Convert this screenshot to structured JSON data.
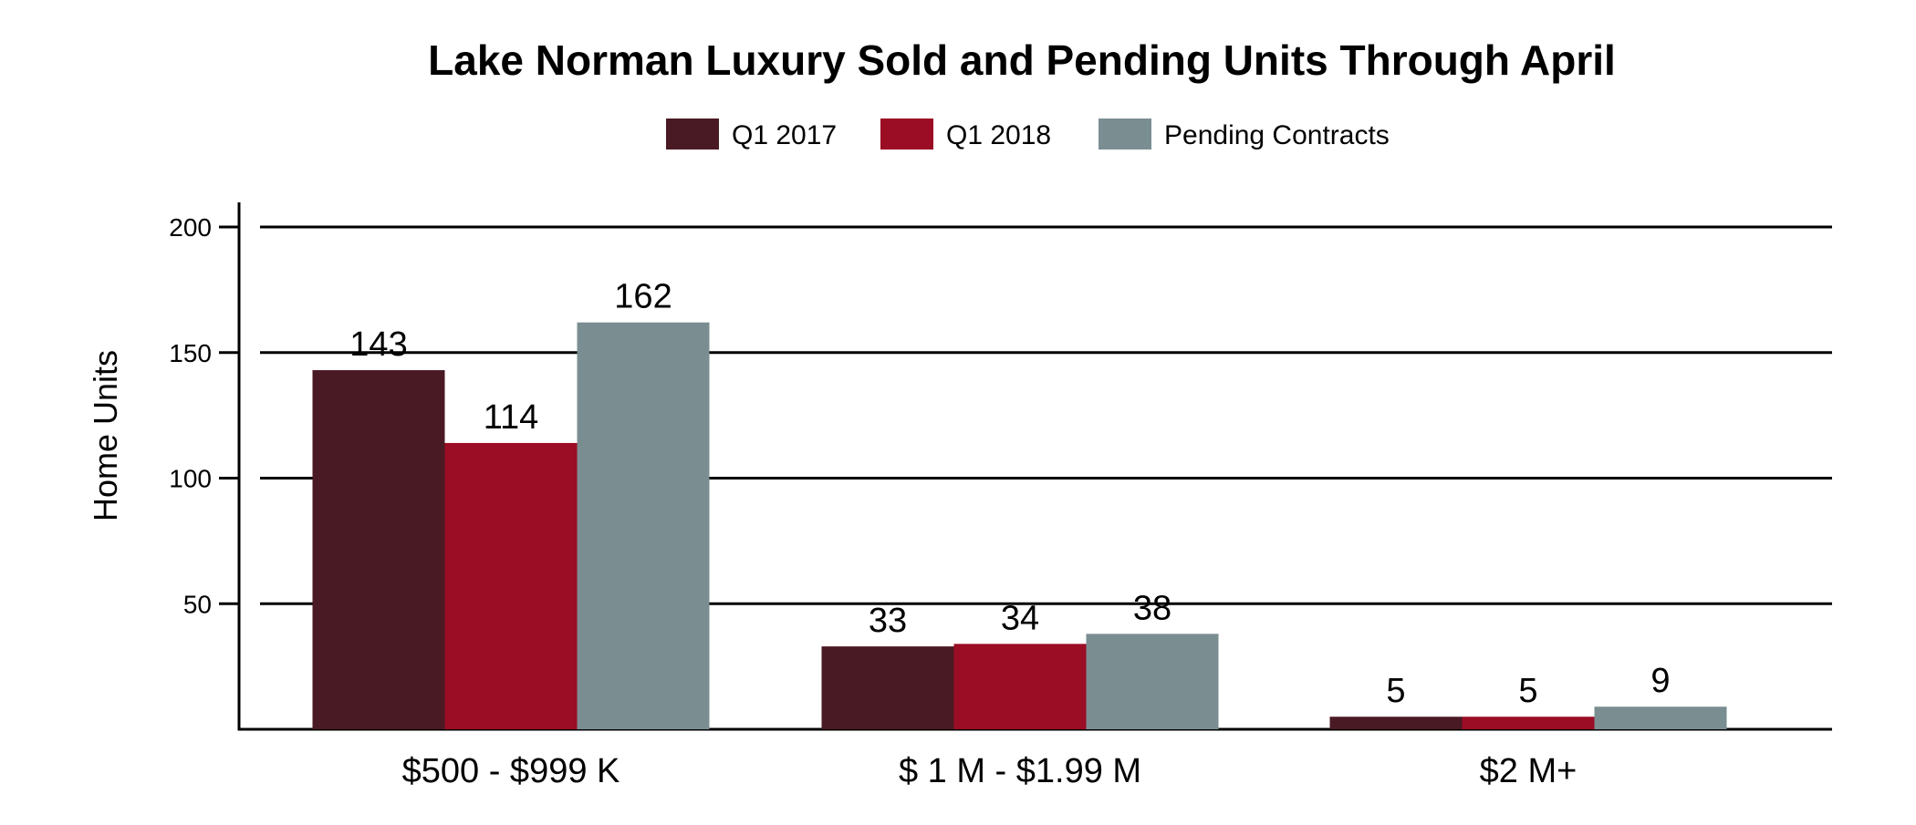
{
  "chart_data": {
    "type": "bar",
    "title": "Lake Norman Luxury Sold and Pending Units Through April",
    "xlabel": "",
    "ylabel": "Home Units",
    "ylim": [
      0,
      200
    ],
    "yticks": [
      50,
      100,
      150,
      200
    ],
    "grid": true,
    "legend_position": "top",
    "categories": [
      "$500 - $999 K",
      "$ 1 M - $1.99 M",
      "$2 M+"
    ],
    "series": [
      {
        "name": "Q1 2017",
        "color": "#4a1a24",
        "values": [
          143,
          33,
          5
        ]
      },
      {
        "name": "Q1 2018",
        "color": "#9b0c25",
        "values": [
          114,
          34,
          5
        ]
      },
      {
        "name": "Pending Contracts",
        "color": "#7a8e92",
        "values": [
          162,
          38,
          9
        ]
      }
    ],
    "data_labels": [
      [
        "143",
        "33",
        "5"
      ],
      [
        "114",
        "34",
        "5"
      ],
      [
        "162",
        "38",
        "9"
      ]
    ]
  }
}
